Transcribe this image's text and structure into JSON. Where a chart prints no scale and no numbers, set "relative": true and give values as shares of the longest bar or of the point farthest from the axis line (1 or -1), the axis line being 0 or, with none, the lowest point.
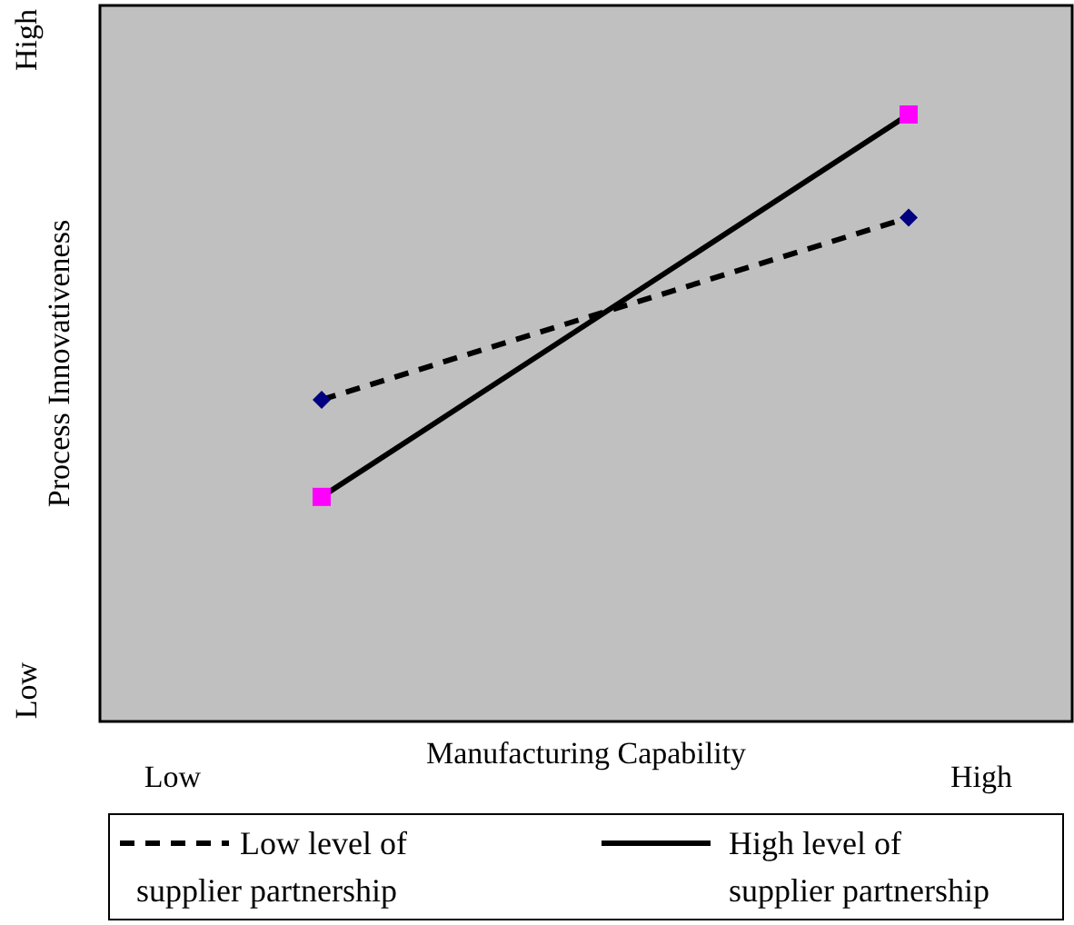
{
  "chart_data": {
    "type": "line",
    "relative": true,
    "xlabel": "Manufacturing Capability",
    "ylabel": "Process Innovativeness",
    "categories": [
      null,
      null
    ],
    "series": [
      {
        "name": "Low level of supplier partnership",
        "color": "#000000",
        "colors": [
          "#000080",
          "#000080"
        ],
        "marker": "diamond",
        "line_style": "dashed",
        "values": [
          0.53,
          0.83
        ]
      },
      {
        "name": "High level of supplier partnership",
        "color": "#000000",
        "colors": [
          "#ff00ff",
          "#ff00ff"
        ],
        "marker": "square",
        "line_style": "solid",
        "values": [
          0.37,
          1
        ]
      }
    ],
    "annotations": [
      "High",
      "Low",
      "Low",
      "High"
    ],
    "legend": "bottom"
  }
}
